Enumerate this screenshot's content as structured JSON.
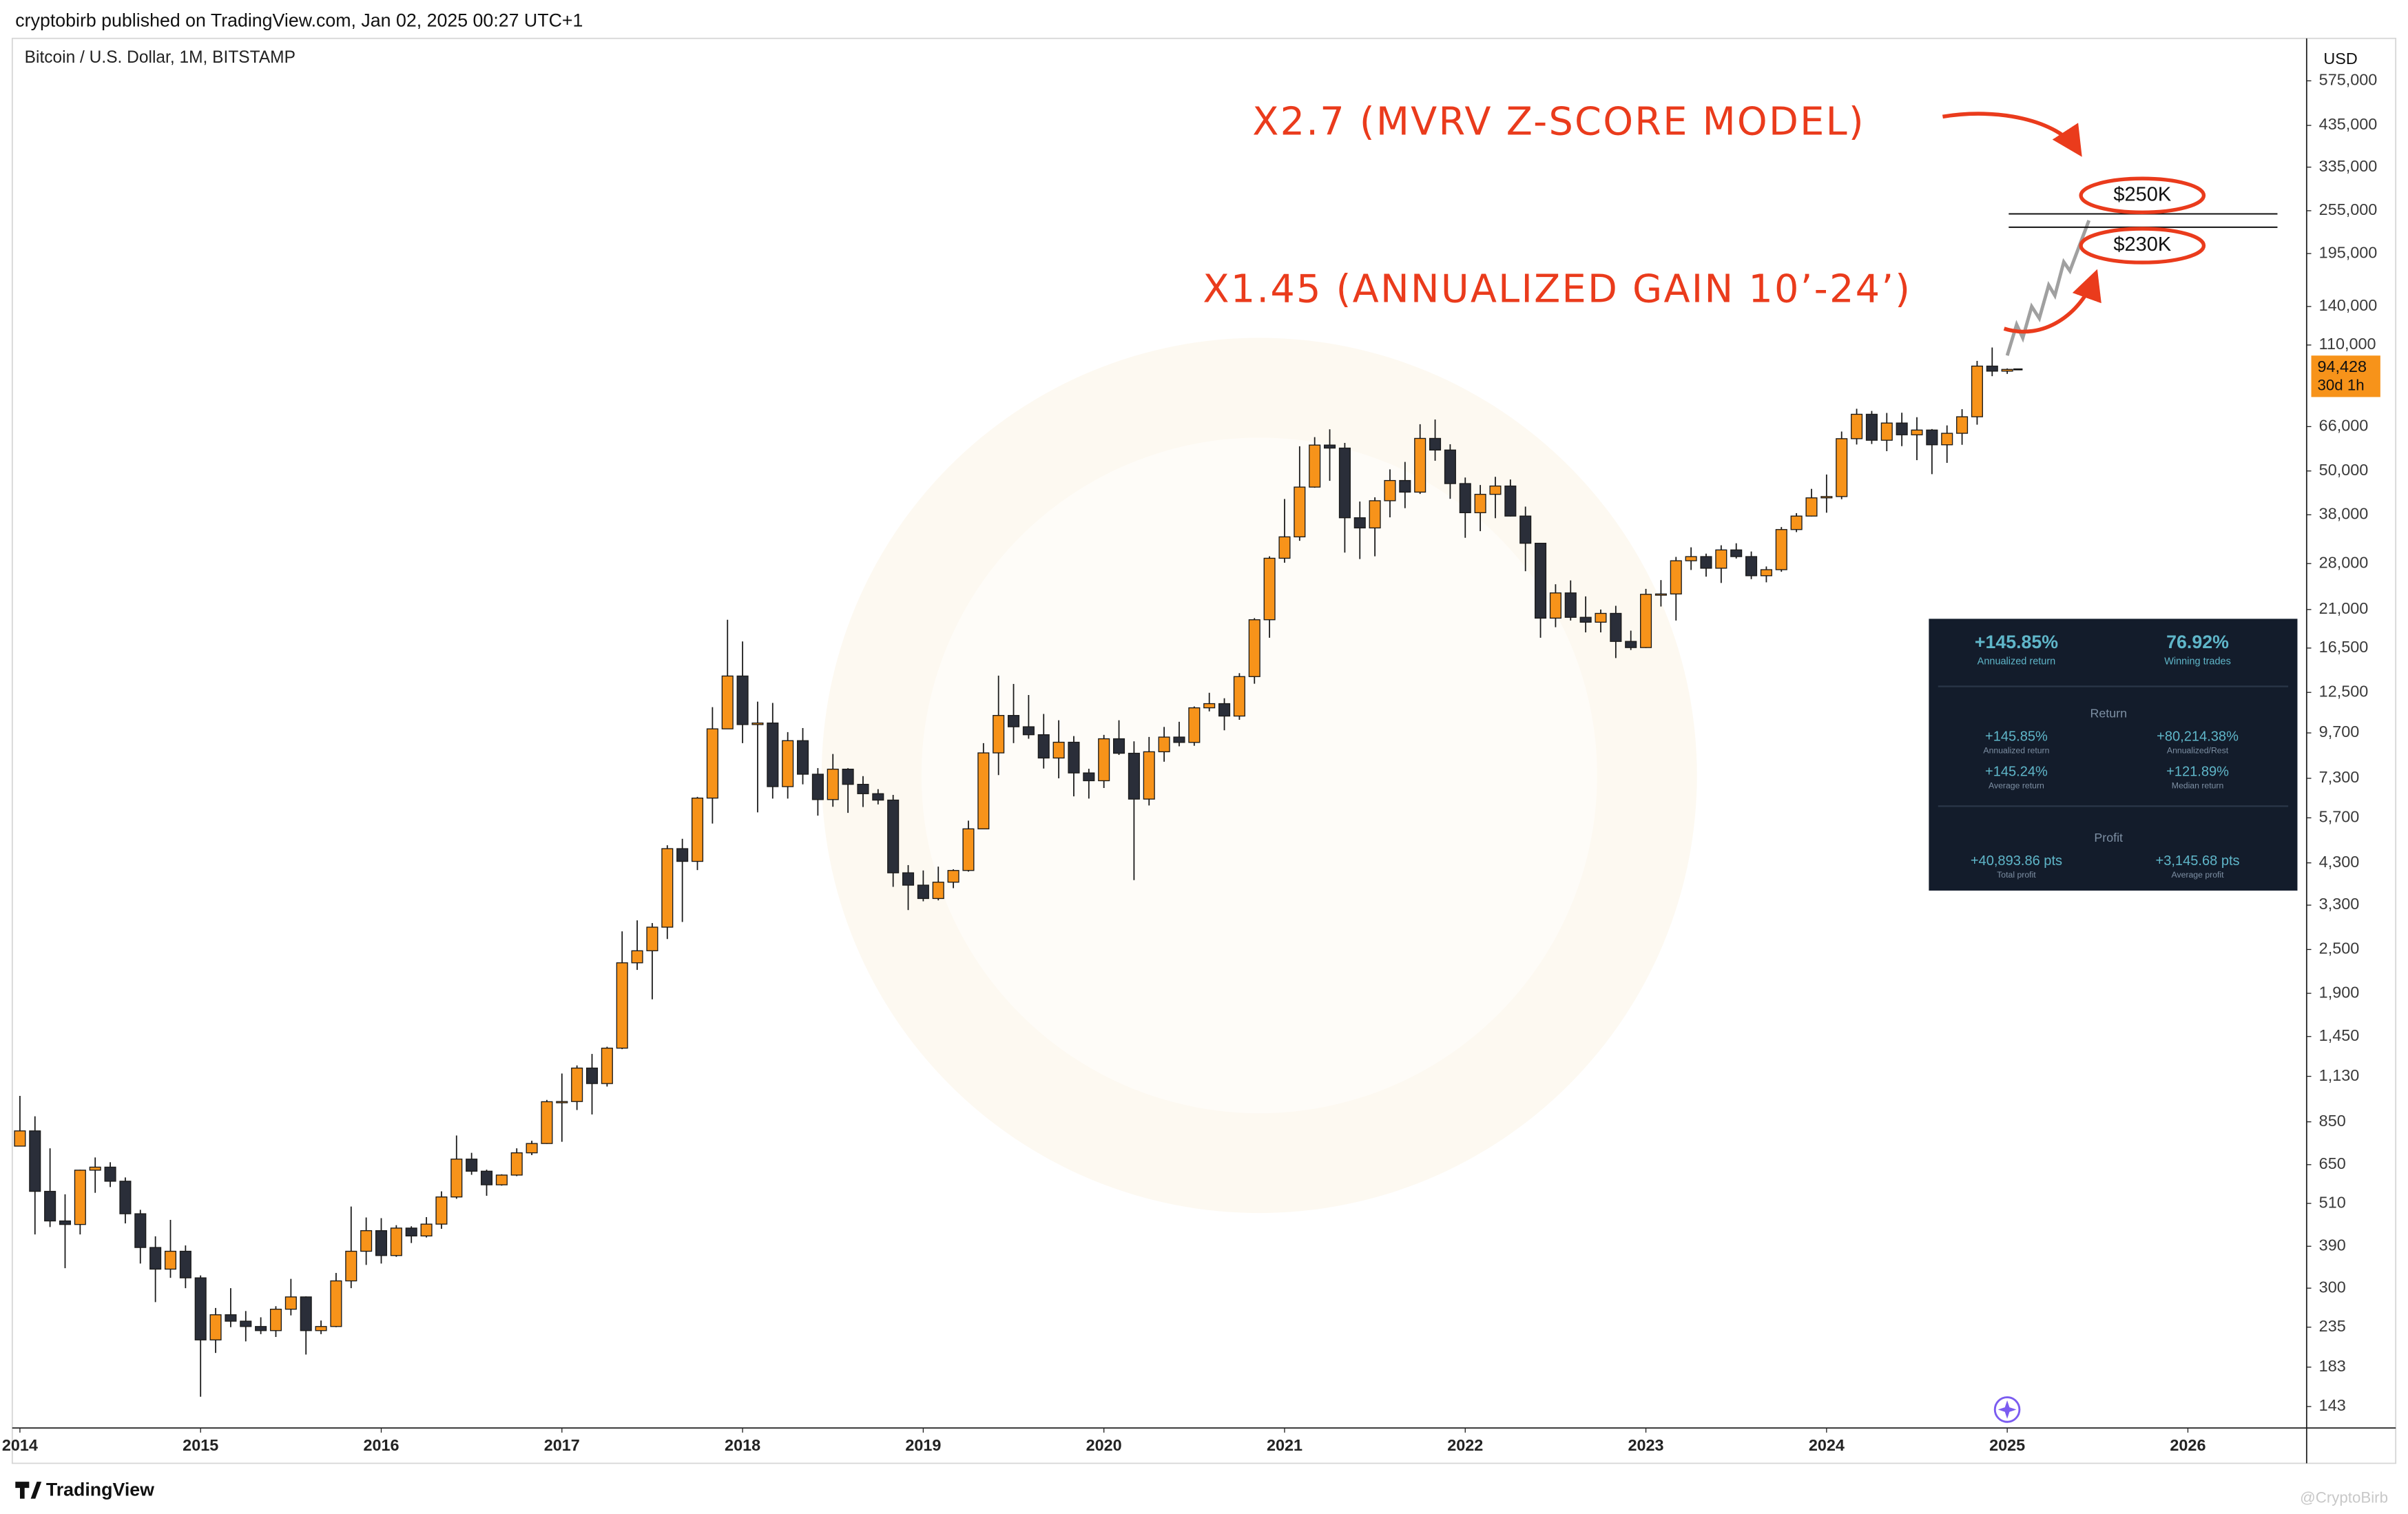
{
  "header": {
    "published": "cryptobirb published on TradingView.com, Jan 02, 2025 00:27 UTC+1",
    "brand": "TradingView",
    "watermark": "@CryptoBirb"
  },
  "chart_data": {
    "type": "candlestick",
    "title": "Bitcoin / U.S. Dollar, 1M, BITSTAMP",
    "currency": "USD",
    "log_scale": true,
    "grid": false,
    "up_color": "#f7931a",
    "down_color": "#2a2e39",
    "x": [
      "2014-01",
      "2014-02",
      "2014-03",
      "2014-04",
      "2014-05",
      "2014-06",
      "2014-07",
      "2014-08",
      "2014-09",
      "2014-10",
      "2014-11",
      "2014-12",
      "2015-01",
      "2015-02",
      "2015-03",
      "2015-04",
      "2015-05",
      "2015-06",
      "2015-07",
      "2015-08",
      "2015-09",
      "2015-10",
      "2015-11",
      "2015-12",
      "2016-01",
      "2016-02",
      "2016-03",
      "2016-04",
      "2016-05",
      "2016-06",
      "2016-07",
      "2016-08",
      "2016-09",
      "2016-10",
      "2016-11",
      "2016-12",
      "2017-01",
      "2017-02",
      "2017-03",
      "2017-04",
      "2017-05",
      "2017-06",
      "2017-07",
      "2017-08",
      "2017-09",
      "2017-10",
      "2017-11",
      "2017-12",
      "2018-01",
      "2018-02",
      "2018-03",
      "2018-04",
      "2018-05",
      "2018-06",
      "2018-07",
      "2018-08",
      "2018-09",
      "2018-10",
      "2018-11",
      "2018-12",
      "2019-01",
      "2019-02",
      "2019-03",
      "2019-04",
      "2019-05",
      "2019-06",
      "2019-07",
      "2019-08",
      "2019-09",
      "2019-10",
      "2019-11",
      "2019-12",
      "2020-01",
      "2020-02",
      "2020-03",
      "2020-04",
      "2020-05",
      "2020-06",
      "2020-07",
      "2020-08",
      "2020-09",
      "2020-10",
      "2020-11",
      "2020-12",
      "2021-01",
      "2021-02",
      "2021-03",
      "2021-04",
      "2021-05",
      "2021-06",
      "2021-07",
      "2021-08",
      "2021-09",
      "2021-10",
      "2021-11",
      "2021-12",
      "2022-01",
      "2022-02",
      "2022-03",
      "2022-04",
      "2022-05",
      "2022-06",
      "2022-07",
      "2022-08",
      "2022-09",
      "2022-10",
      "2022-11",
      "2022-12",
      "2023-01",
      "2023-02",
      "2023-03",
      "2023-04",
      "2023-05",
      "2023-06",
      "2023-07",
      "2023-08",
      "2023-09",
      "2023-10",
      "2023-11",
      "2023-12",
      "2024-01",
      "2024-02",
      "2024-03",
      "2024-04",
      "2024-05",
      "2024-06",
      "2024-07",
      "2024-08",
      "2024-09",
      "2024-10",
      "2024-11",
      "2024-12",
      "2025-01"
    ],
    "open": [
      730,
      803,
      550,
      457,
      447,
      628,
      640,
      586,
      478,
      387,
      338,
      378,
      320,
      217,
      254,
      244,
      236,
      230,
      263,
      284,
      230,
      236,
      314,
      378,
      430,
      368,
      437,
      416,
      448,
      531,
      673,
      624,
      573,
      609,
      700,
      742,
      964,
      965,
      1190,
      1080,
      1348,
      2300,
      2480,
      2875,
      4700,
      4340,
      6450,
      9950,
      13850,
      10220,
      10320,
      6930,
      9240,
      7490,
      6390,
      7730,
      7030,
      6630,
      6370,
      4040,
      3740,
      3440,
      3810,
      4100,
      5320,
      8560,
      10820,
      10080,
      9590,
      8290,
      9150,
      7550,
      7190,
      9350,
      8540,
      6410,
      8620,
      9450,
      9140,
      11350,
      11650,
      10780,
      13800,
      19700,
      28950,
      33100,
      45200,
      58800,
      57700,
      37300,
      35000,
      41500,
      47100,
      43800,
      61300,
      57000,
      46200,
      38500,
      43200,
      45500,
      37700,
      31800,
      19900,
      23300,
      20000,
      19400,
      20500,
      17200,
      16550,
      23100,
      23150,
      28500,
      29250,
      27200,
      30500,
      29250,
      25950,
      26950,
      34650,
      37700,
      42250,
      42600,
      61200,
      71300,
      60600,
      67500,
      62700,
      64600,
      58900,
      63300,
      70200,
      96400,
      93400
    ],
    "high": [
      1000,
      880,
      720,
      540,
      630,
      680,
      660,
      600,
      490,
      415,
      460,
      392,
      325,
      265,
      300,
      260,
      250,
      268,
      318,
      285,
      245,
      330,
      500,
      467,
      465,
      445,
      442,
      468,
      550,
      780,
      700,
      630,
      612,
      720,
      755,
      975,
      1150,
      1210,
      1300,
      1360,
      2800,
      3000,
      2950,
      4800,
      5000,
      6500,
      11400,
      19700,
      17200,
      11800,
      11700,
      9750,
      10000,
      7780,
      8500,
      7780,
      7400,
      6820,
      6580,
      4240,
      4100,
      4200,
      4130,
      5600,
      9100,
      13880,
      13180,
      12300,
      10920,
      10500,
      9510,
      7750,
      9580,
      10500,
      9200,
      9460,
      10070,
      10400,
      11450,
      12470,
      12050,
      14100,
      19900,
      29300,
      41950,
      58350,
      61800,
      64900,
      59600,
      41300,
      42400,
      50500,
      52900,
      67000,
      69000,
      59100,
      48000,
      45800,
      48200,
      47400,
      40000,
      31900,
      24600,
      25200,
      22800,
      21000,
      21500,
      18400,
      23900,
      25250,
      29200,
      31000,
      29800,
      31400,
      31800,
      30200,
      27500,
      35200,
      38400,
      44700,
      48900,
      64000,
      73800,
      72800,
      71900,
      72000,
      70000,
      65000,
      66500,
      73600,
      99600,
      108300,
      95000
    ],
    "low": [
      730,
      420,
      440,
      340,
      420,
      545,
      565,
      450,
      350,
      275,
      320,
      300,
      152,
      200,
      235,
      215,
      225,
      221,
      253,
      198,
      225,
      235,
      300,
      347,
      350,
      365,
      398,
      412,
      435,
      525,
      610,
      535,
      570,
      605,
      690,
      740,
      750,
      915,
      890,
      1060,
      1340,
      2200,
      1830,
      2670,
      2970,
      4110,
      5500,
      9950,
      9100,
      5900,
      6430,
      6430,
      7030,
      5780,
      6110,
      5880,
      6100,
      6200,
      3700,
      3200,
      3380,
      3400,
      3670,
      4070,
      5320,
      7450,
      9100,
      9350,
      7760,
      7300,
      6520,
      6430,
      6870,
      8450,
      3860,
      6160,
      8100,
      8920,
      8950,
      11100,
      9860,
      10530,
      13200,
      17600,
      28150,
      32300,
      45000,
      47000,
      30000,
      28800,
      29300,
      37400,
      39600,
      43300,
      53300,
      42000,
      32900,
      34300,
      37200,
      37600,
      26700,
      17600,
      18800,
      19600,
      18200,
      18200,
      15500,
      16300,
      16500,
      21400,
      19600,
      26900,
      25800,
      24800,
      28900,
      25400,
      24900,
      26600,
      34100,
      37600,
      38500,
      41900,
      59000,
      59200,
      56600,
      58400,
      53500,
      49000,
      52600,
      58900,
      66800,
      90500,
      91800
    ],
    "close": [
      803,
      550,
      457,
      447,
      628,
      640,
      586,
      478,
      387,
      338,
      378,
      320,
      217,
      254,
      244,
      236,
      230,
      263,
      284,
      230,
      236,
      314,
      378,
      430,
      368,
      437,
      416,
      448,
      531,
      673,
      624,
      573,
      609,
      700,
      742,
      964,
      965,
      1190,
      1080,
      1348,
      2300,
      2480,
      2875,
      4700,
      4340,
      6450,
      9950,
      13850,
      10220,
      10320,
      6930,
      9240,
      7490,
      6390,
      7730,
      7030,
      6630,
      6370,
      4040,
      3740,
      3440,
      3810,
      4100,
      5320,
      8560,
      10820,
      10080,
      9590,
      8290,
      9150,
      7550,
      7190,
      9350,
      8540,
      6410,
      8620,
      9450,
      9140,
      11350,
      11650,
      10780,
      13800,
      19700,
      28950,
      33100,
      45200,
      58800,
      57700,
      37300,
      35000,
      41500,
      47100,
      43800,
      61300,
      57000,
      46200,
      38500,
      43200,
      45500,
      37700,
      31800,
      19900,
      23300,
      20000,
      19400,
      20500,
      17200,
      16550,
      23100,
      23150,
      28500,
      29250,
      27200,
      30500,
      29250,
      25950,
      26950,
      34650,
      37700,
      42250,
      42600,
      61200,
      71300,
      60600,
      67500,
      62700,
      64600,
      58900,
      63300,
      70200,
      96400,
      93400,
      94428
    ],
    "last_label": "94,428",
    "countdown": "30d 1h",
    "xlim": [
      "2013-12-16",
      "2026-08-28"
    ],
    "xticks": [
      2014,
      2015,
      2016,
      2017,
      2018,
      2019,
      2020,
      2021,
      2022,
      2023,
      2024,
      2025,
      2026
    ],
    "ylim": [
      125,
      750000
    ],
    "yticks": [
      143,
      183,
      235,
      300,
      390,
      510,
      650,
      850,
      {
        "value": 1130,
        "label": "1,130"
      },
      {
        "value": 1450,
        "label": "1,450"
      },
      {
        "value": 1900,
        "label": "1,900"
      },
      {
        "value": 2500,
        "label": "2,500"
      },
      {
        "value": 3300,
        "label": "3,300"
      },
      {
        "value": 4300,
        "label": "4,300"
      },
      {
        "value": 5700,
        "label": "5,700"
      },
      {
        "value": 7300,
        "label": "7,300"
      },
      {
        "value": 9700,
        "label": "9,700"
      },
      {
        "value": 12500,
        "label": "12,500"
      },
      {
        "value": 16500,
        "label": "16,500"
      },
      {
        "value": 21000,
        "label": "21,000"
      },
      {
        "value": 28000,
        "label": "28,000"
      },
      {
        "value": 38000,
        "label": "38,000"
      },
      {
        "value": 50000,
        "label": "50,000"
      },
      {
        "value": 66000,
        "label": "66,000"
      },
      {
        "value": 110000,
        "label": "110,000"
      },
      {
        "value": 140000,
        "label": "140,000"
      },
      {
        "value": 195000,
        "label": "195,000"
      },
      {
        "value": 255000,
        "label": "255,000"
      },
      {
        "value": 335000,
        "label": "335,000"
      },
      {
        "value": 435000,
        "label": "435,000"
      },
      {
        "value": 575000,
        "label": "575,000"
      }
    ],
    "projection": {
      "color": "#a0a0a0",
      "x": [
        "2025-01-01",
        "2025-01-20",
        "2025-02-02",
        "2025-02-20",
        "2025-03-05",
        "2025-03-24",
        "2025-04-06",
        "2025-04-24",
        "2025-05-06",
        "2025-06-14"
      ],
      "values": [
        103000,
        125000,
        115000,
        140000,
        130000,
        160000,
        150000,
        185000,
        175000,
        240000
      ]
    },
    "levels": [
      {
        "value": 250000,
        "label": "$250K"
      },
      {
        "value": 230000,
        "label": "$230K"
      }
    ],
    "annotations": [
      "X2.7 (MVRV Z-SCORE MODEL)",
      "X1.45 (ANNUALIZED GAIN 10’-24’)"
    ]
  },
  "stats": {
    "headline": [
      {
        "value": "+145.85%",
        "label": "Annualized return"
      },
      {
        "value": "76.92%",
        "label": "Winning trades"
      }
    ],
    "return": {
      "title": "Return",
      "items": [
        {
          "value": "+145.85%",
          "label": "Annualized return"
        },
        {
          "value": "+80,214.38%",
          "label": "Annualized/Rest"
        },
        {
          "value": "+145.24%",
          "label": "Average return"
        },
        {
          "value": "+121.89%",
          "label": "Median return"
        }
      ]
    },
    "profit": {
      "title": "Profit",
      "items": [
        {
          "value": "+40,893.86 pts",
          "label": "Total profit"
        },
        {
          "value": "+3,145.68 pts",
          "label": "Average profit"
        }
      ]
    }
  }
}
